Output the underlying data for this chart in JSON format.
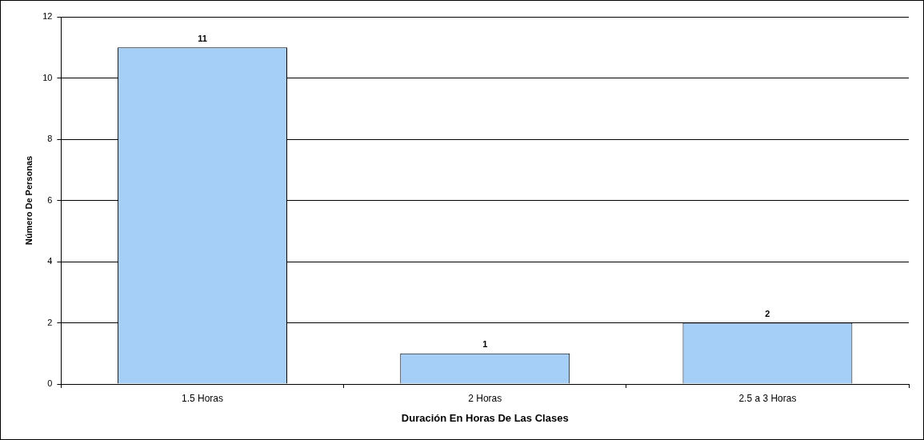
{
  "chart_data": {
    "type": "bar",
    "xlabel": "Duración En Horas De Las Clases",
    "ylabel": "Número De Personas",
    "categories": [
      "1.5 Horas",
      "2 Horas",
      "2.5 a 3 Horas"
    ],
    "values": [
      11,
      1,
      2
    ],
    "color": "#a6cff7",
    "ylim": [
      0,
      12
    ],
    "yticks": [
      0,
      2,
      4,
      6,
      8,
      10,
      12
    ],
    "grid": "y",
    "legend": false,
    "data_labels": true
  }
}
